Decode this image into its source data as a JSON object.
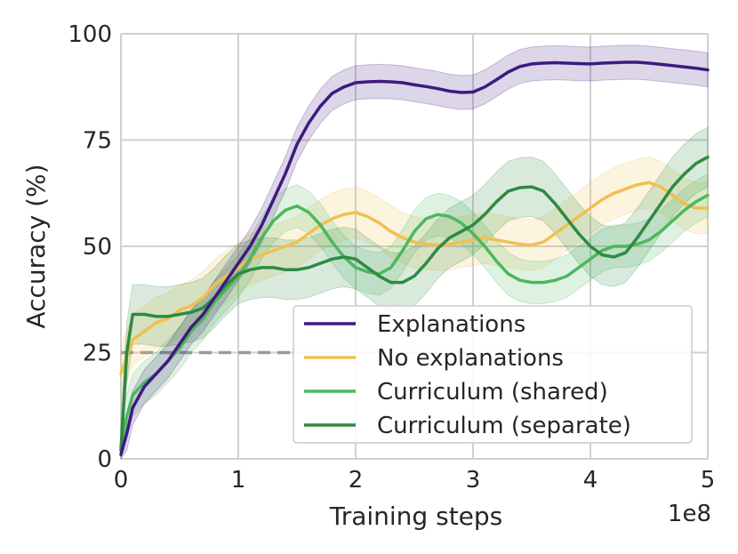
{
  "chart_data": {
    "type": "line",
    "xlabel": "Training steps",
    "ylabel": "Accuracy (%)",
    "x_offset_label": "1e8",
    "xlim": [
      0,
      5
    ],
    "ylim": [
      0,
      100
    ],
    "xticks": [
      0,
      1,
      2,
      3,
      4,
      5
    ],
    "xtick_labels": [
      "0",
      "1",
      "2",
      "3",
      "4",
      "5"
    ],
    "yticks": [
      0,
      25,
      50,
      75,
      100
    ],
    "ytick_labels": [
      "0",
      "25",
      "50",
      "75",
      "100"
    ],
    "grid": true,
    "legend_position": "lower-right",
    "reference_line": {
      "y": 25,
      "x_range": [
        0,
        1.5
      ],
      "style": "dashed",
      "color": "#999999"
    },
    "series": [
      {
        "name": "Explanations",
        "color": "#3f1a7e",
        "x": [
          0,
          0.05,
          0.1,
          0.2,
          0.3,
          0.4,
          0.5,
          0.6,
          0.7,
          0.8,
          0.9,
          1.0,
          1.1,
          1.2,
          1.3,
          1.4,
          1.5,
          1.6,
          1.7,
          1.8,
          1.9,
          2.0,
          2.1,
          2.2,
          2.3,
          2.4,
          2.5,
          2.6,
          2.7,
          2.8,
          2.9,
          3.0,
          3.1,
          3.2,
          3.3,
          3.4,
          3.5,
          3.6,
          3.7,
          3.8,
          3.9,
          4.0,
          4.1,
          4.2,
          4.3,
          4.4,
          4.5,
          4.6,
          4.7,
          4.8,
          4.9,
          5.0
        ],
        "values": [
          1,
          6,
          12,
          17,
          20,
          23,
          27,
          31,
          34,
          38,
          42,
          46,
          50,
          55,
          61,
          67,
          74,
          79,
          83,
          86,
          87.5,
          88.5,
          88.7,
          88.8,
          88.7,
          88.5,
          88,
          87.6,
          87.1,
          86.5,
          86.2,
          86.3,
          87.5,
          89.2,
          91,
          92.3,
          92.9,
          93.1,
          93.2,
          93.1,
          93,
          92.9,
          93.1,
          93.2,
          93.3,
          93.3,
          93.1,
          92.8,
          92.5,
          92.2,
          91.9,
          91.5
        ],
        "band_halfwidth": 4
      },
      {
        "name": "No explanations",
        "color": "#f0c050",
        "x": [
          0,
          0.05,
          0.1,
          0.2,
          0.3,
          0.4,
          0.5,
          0.6,
          0.7,
          0.8,
          0.9,
          1.0,
          1.1,
          1.2,
          1.3,
          1.4,
          1.5,
          1.6,
          1.7,
          1.8,
          1.9,
          2.0,
          2.1,
          2.2,
          2.3,
          2.4,
          2.5,
          2.6,
          2.7,
          2.8,
          2.9,
          3.0,
          3.1,
          3.2,
          3.3,
          3.4,
          3.5,
          3.6,
          3.7,
          3.8,
          3.9,
          4.0,
          4.1,
          4.2,
          4.3,
          4.4,
          4.5,
          4.6,
          4.7,
          4.8,
          4.9,
          5.0
        ],
        "values": [
          20,
          24,
          28,
          30,
          32,
          33,
          35,
          36,
          38,
          41,
          43,
          45,
          47,
          48,
          49,
          50,
          51,
          53,
          55,
          56.5,
          57.5,
          58,
          57,
          55.5,
          53.5,
          52,
          51,
          50.5,
          50.3,
          50.5,
          51,
          51.5,
          52,
          51.5,
          51,
          50.5,
          50.3,
          51,
          53,
          55,
          57,
          59,
          61,
          62.5,
          63.5,
          64.5,
          65,
          64,
          62,
          60,
          59,
          59
        ],
        "band_halfwidth": 6
      },
      {
        "name": "Curriculum (shared)",
        "color": "#4cb85c",
        "x": [
          0,
          0.05,
          0.1,
          0.2,
          0.3,
          0.4,
          0.5,
          0.6,
          0.7,
          0.8,
          0.9,
          1.0,
          1.1,
          1.2,
          1.3,
          1.4,
          1.5,
          1.6,
          1.7,
          1.8,
          1.9,
          2.0,
          2.1,
          2.2,
          2.3,
          2.4,
          2.5,
          2.6,
          2.7,
          2.8,
          2.9,
          3.0,
          3.1,
          3.2,
          3.3,
          3.4,
          3.5,
          3.6,
          3.7,
          3.8,
          3.9,
          4.0,
          4.1,
          4.2,
          4.3,
          4.4,
          4.5,
          4.6,
          4.7,
          4.8,
          4.9,
          5.0
        ],
        "values": [
          3,
          10,
          15,
          18,
          20,
          23,
          26,
          30,
          33,
          37,
          40,
          43,
          47,
          52,
          56,
          58.5,
          59.5,
          58,
          55,
          51,
          47.5,
          45,
          44,
          43.5,
          45,
          49,
          53.5,
          56.5,
          57.5,
          57,
          55.5,
          53,
          50,
          46.5,
          43.5,
          42,
          41.5,
          41.5,
          42,
          43,
          45,
          47,
          49,
          50,
          50,
          50.5,
          51.5,
          53.5,
          56,
          58.5,
          60.5,
          62
        ],
        "band_halfwidth": 5
      },
      {
        "name": "Curriculum (separate)",
        "color": "#2e8a43",
        "x": [
          0,
          0.05,
          0.1,
          0.2,
          0.3,
          0.4,
          0.5,
          0.6,
          0.7,
          0.8,
          0.9,
          1.0,
          1.1,
          1.2,
          1.3,
          1.4,
          1.5,
          1.6,
          1.7,
          1.8,
          1.9,
          2.0,
          2.1,
          2.2,
          2.3,
          2.4,
          2.5,
          2.6,
          2.7,
          2.8,
          2.9,
          3.0,
          3.1,
          3.2,
          3.3,
          3.4,
          3.5,
          3.6,
          3.7,
          3.8,
          3.9,
          4.0,
          4.1,
          4.2,
          4.3,
          4.4,
          4.5,
          4.6,
          4.7,
          4.8,
          4.9,
          5.0
        ],
        "values": [
          2,
          25,
          34,
          34,
          33.5,
          33.5,
          34,
          34.5,
          35.5,
          38,
          41,
          43.5,
          44.5,
          45,
          45,
          44.5,
          44.5,
          45,
          46,
          47,
          47.5,
          47,
          45,
          43,
          41.5,
          41.5,
          43,
          46,
          49.5,
          52,
          53.5,
          55,
          57.5,
          60.5,
          63,
          63.8,
          64,
          63,
          60,
          56.5,
          53,
          50,
          48,
          47.5,
          48.5,
          52,
          56,
          60,
          64,
          67,
          69.5,
          71
        ],
        "band_halfwidth": 7
      }
    ]
  }
}
